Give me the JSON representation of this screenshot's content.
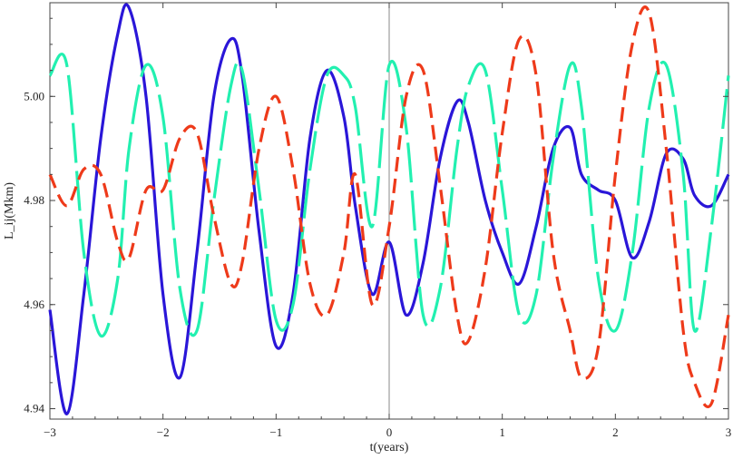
{
  "chart_data": {
    "type": "line",
    "title": "",
    "xlabel": "t(years)",
    "ylabel": "L_ij(Mkm)",
    "xlim": [
      -3.0,
      3.0
    ],
    "ylim": [
      4.938,
      5.018
    ],
    "xticks": [
      "−3",
      "−2",
      "−1",
      "0",
      "1",
      "2",
      "3"
    ],
    "yticks": [
      "4.94",
      "4.96",
      "4.98",
      "5.00"
    ],
    "grid": false,
    "legend": "none",
    "x": [
      -3.0,
      -2.85,
      -2.7,
      -2.55,
      -2.4,
      -2.3,
      -2.15,
      -2.0,
      -1.85,
      -1.7,
      -1.55,
      -1.4,
      -1.3,
      -1.15,
      -1.0,
      -0.85,
      -0.7,
      -0.55,
      -0.4,
      -0.3,
      -0.15,
      0.0,
      0.15,
      0.3,
      0.45,
      0.6,
      0.7,
      0.85,
      1.0,
      1.15,
      1.3,
      1.45,
      1.6,
      1.7,
      1.85,
      2.0,
      2.15,
      2.3,
      2.45,
      2.6,
      2.7,
      2.85,
      3.0
    ],
    "series": [
      {
        "color": "#2a16d8",
        "dash": "solid",
        "values": [
          4.959,
          4.939,
          4.962,
          4.992,
          5.012,
          5.017,
          5.0,
          4.962,
          4.946,
          4.97,
          5.0,
          5.011,
          5.004,
          4.974,
          4.952,
          4.962,
          4.992,
          5.005,
          4.996,
          4.979,
          4.962,
          4.972,
          4.958,
          4.968,
          4.988,
          4.999,
          4.995,
          4.98,
          4.97,
          4.964,
          4.975,
          4.99,
          4.994,
          4.985,
          4.982,
          4.98,
          4.969,
          4.976,
          4.989,
          4.988,
          4.981,
          4.979,
          4.985
        ]
      },
      {
        "color": "#22f0b0",
        "dash": "long",
        "values": [
          5.004,
          5.006,
          4.97,
          4.954,
          4.965,
          4.99,
          5.006,
          4.996,
          4.963,
          4.955,
          4.98,
          5.002,
          5.005,
          4.982,
          4.957,
          4.96,
          4.986,
          5.004,
          5.004,
          4.998,
          4.975,
          5.006,
          4.994,
          4.958,
          4.963,
          4.99,
          5.002,
          5.005,
          4.982,
          4.958,
          4.962,
          4.988,
          5.006,
          4.998,
          4.965,
          4.955,
          4.97,
          4.998,
          5.006,
          4.985,
          4.955,
          4.975,
          5.004
        ]
      },
      {
        "color": "#ee3a1a",
        "dash": "short",
        "values": [
          4.985,
          4.979,
          4.986,
          4.985,
          4.972,
          4.969,
          4.982,
          4.982,
          4.992,
          4.993,
          4.977,
          4.964,
          4.968,
          4.99,
          5.0,
          4.986,
          4.964,
          4.958,
          4.97,
          4.985,
          4.96,
          4.975,
          5.0,
          5.005,
          4.983,
          4.958,
          4.953,
          4.967,
          4.993,
          5.011,
          5.004,
          4.97,
          4.955,
          4.946,
          4.952,
          4.985,
          5.01,
          5.016,
          4.99,
          4.955,
          4.945,
          4.941,
          4.958
        ]
      }
    ]
  }
}
